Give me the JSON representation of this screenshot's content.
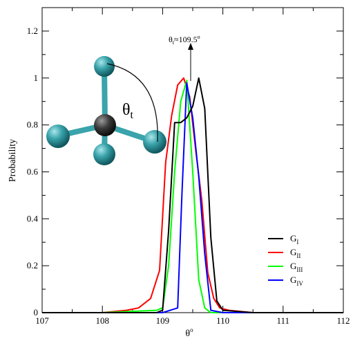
{
  "chart_data": {
    "type": "line",
    "xlabel": "θ",
    "xlabel_sup": "o",
    "ylabel": "Probability",
    "xlim": [
      107,
      112
    ],
    "ylim": [
      0,
      1.3
    ],
    "x_ticks": [
      107,
      108,
      109,
      110,
      111,
      112
    ],
    "y_ticks": [
      0,
      0.2,
      0.4,
      0.6,
      0.8,
      1,
      1.2
    ],
    "x_tick_labels": [
      "107",
      "108",
      "109",
      "110",
      "111",
      "112"
    ],
    "y_tick_labels": [
      "0",
      "0.2",
      "0.4",
      "0.6",
      "0.8",
      "1",
      "1.2"
    ],
    "legend_position": "lower-right",
    "series": [
      {
        "name": "G",
        "sub": "I",
        "color": "#000000",
        "x": [
          107.0,
          108.0,
          108.9,
          109.0,
          109.1,
          109.2,
          109.3,
          109.4,
          109.5,
          109.6,
          109.7,
          109.8,
          109.9,
          110.0,
          110.5,
          112.0
        ],
        "y": [
          0,
          0,
          0,
          0.01,
          0.35,
          0.81,
          0.81,
          0.83,
          0.88,
          1.0,
          0.87,
          0.32,
          0.05,
          0.01,
          0,
          0
        ]
      },
      {
        "name": "G",
        "sub": "II",
        "color": "#ff0000",
        "x": [
          107.0,
          108.0,
          108.4,
          108.6,
          108.8,
          108.95,
          109.05,
          109.15,
          109.25,
          109.35,
          109.45,
          109.55,
          109.65,
          109.75,
          109.85,
          109.95,
          110.1,
          110.5,
          112.0
        ],
        "y": [
          0,
          0,
          0.01,
          0.02,
          0.06,
          0.18,
          0.64,
          0.84,
          0.97,
          1.0,
          0.92,
          0.69,
          0.48,
          0.17,
          0.06,
          0.02,
          0.01,
          0,
          0
        ],
        "annotation": {
          "x": 109.5,
          "y": 1.0,
          "text": "θ",
          "sub": "t",
          "suffix": "≈109.5",
          "sup": "o"
        }
      },
      {
        "name": "G",
        "sub": "III",
        "color": "#00ff00",
        "x": [
          107.0,
          108.0,
          108.9,
          109.0,
          109.1,
          109.2,
          109.3,
          109.4,
          109.5,
          109.6,
          109.7,
          109.8,
          110.0,
          112.0
        ],
        "y": [
          0,
          0,
          0.01,
          0.02,
          0.2,
          0.6,
          0.9,
          0.99,
          0.6,
          0.14,
          0.02,
          0,
          0,
          0
        ],
        "annotation_bond_angle_label": "θ",
        "annotation_bond_angle_sub": "t"
      },
      {
        "name": "G",
        "sub": "IV",
        "color": "#0000ff",
        "x": [
          107.0,
          109.0,
          109.25,
          109.32,
          109.4,
          109.5,
          109.6,
          109.7,
          109.8,
          110.0,
          112.0
        ],
        "y": [
          0,
          0,
          0.02,
          0.5,
          0.98,
          0.83,
          0.58,
          0.25,
          0.01,
          0,
          0
        ]
      }
    ]
  }
}
